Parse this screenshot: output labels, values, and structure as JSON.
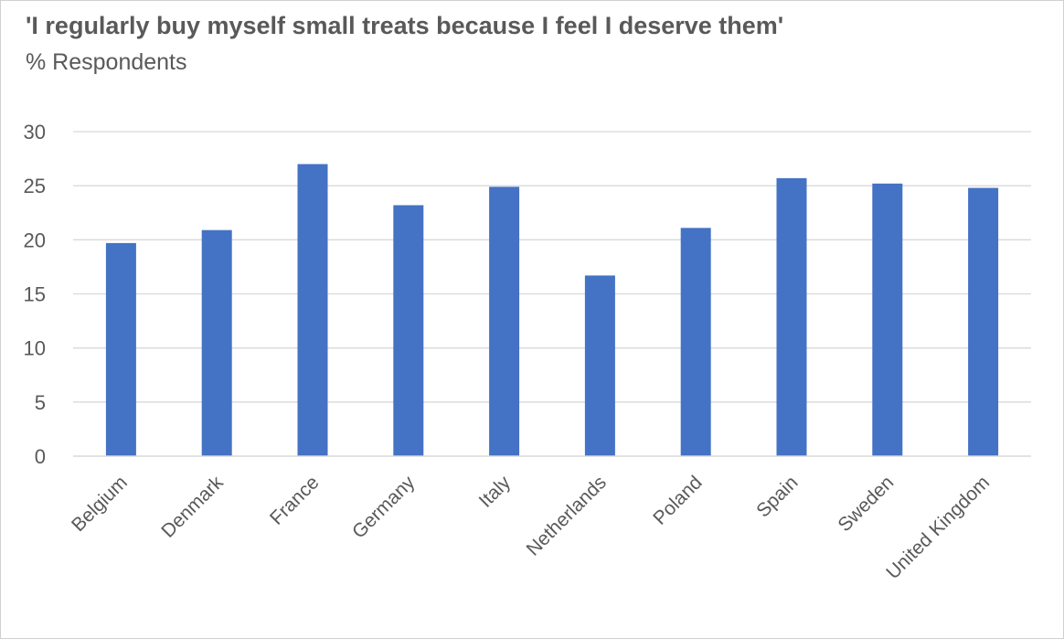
{
  "chart_data": {
    "type": "bar",
    "title": "'I regularly buy myself small treats because I feel I deserve them'",
    "subtitle": "% Respondents",
    "xlabel": "",
    "ylabel": "",
    "ylim": [
      0,
      30
    ],
    "yticks": [
      0,
      5,
      10,
      15,
      20,
      25,
      30
    ],
    "grid": true,
    "bar_color": "#4472c4",
    "categories": [
      "Belgium",
      "Denmark",
      "France",
      "Germany",
      "Italy",
      "Netherlands",
      "Poland",
      "Spain",
      "Sweden",
      "United Kingdom"
    ],
    "values": [
      19.7,
      20.9,
      27.0,
      23.2,
      24.9,
      16.7,
      21.1,
      25.7,
      25.2,
      24.8
    ]
  }
}
